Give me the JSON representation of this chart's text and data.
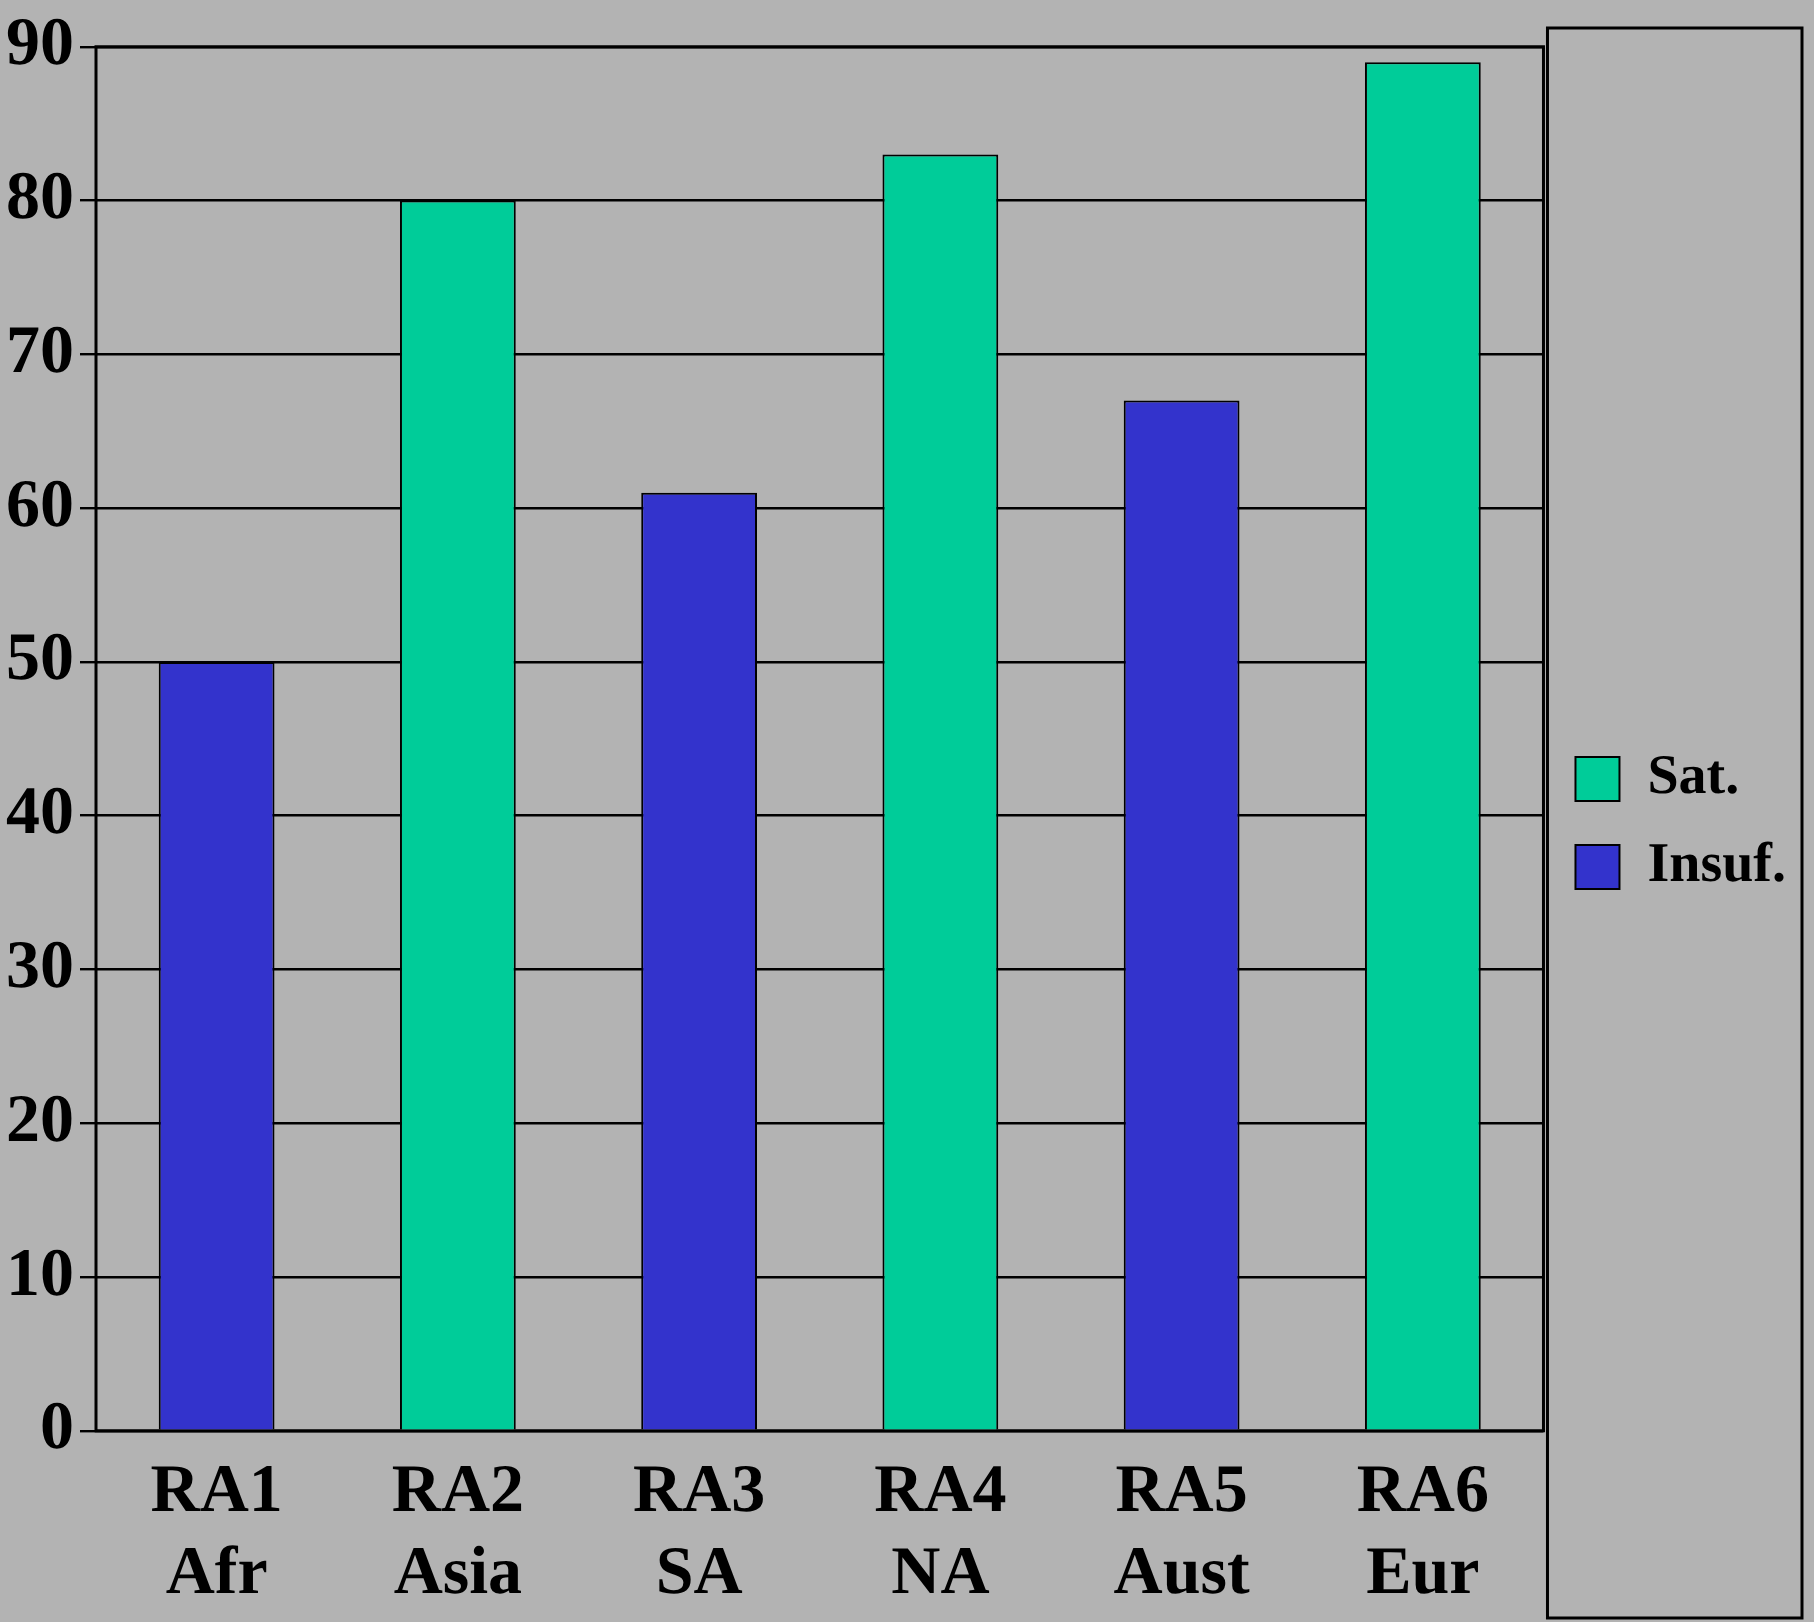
{
  "chart_data": {
    "type": "bar",
    "categories": [
      "RA1\nAfr",
      "RA2\nAsia",
      "RA3\nSA",
      "RA4\nNA",
      "RA5\nAust",
      "RA6\nEur"
    ],
    "series": [
      {
        "name": "Sat.",
        "color": "#00cc99",
        "values": [
          null,
          80,
          null,
          83,
          null,
          89
        ]
      },
      {
        "name": "Insuf.",
        "color": "#3333cc",
        "values": [
          50,
          null,
          61,
          null,
          67,
          null
        ]
      }
    ],
    "ylim": [
      0,
      90
    ],
    "yticks": [
      0,
      10,
      20,
      30,
      40,
      50,
      60,
      70,
      80,
      90
    ],
    "grid": "y",
    "legend": "right"
  }
}
